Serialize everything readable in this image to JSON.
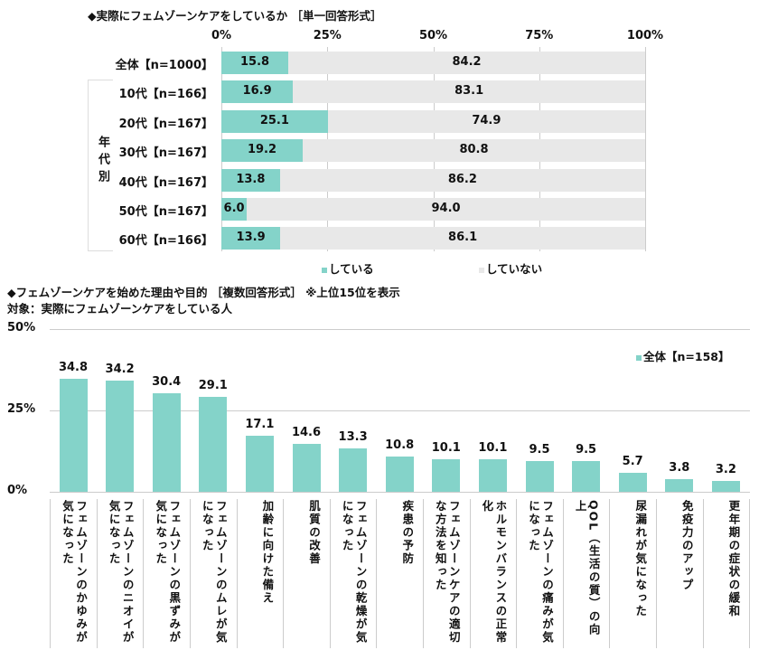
{
  "colors": {
    "done": "#84d3c9",
    "not_done": "#e8e8e8"
  },
  "chart_data": [
    {
      "type": "bar",
      "orientation": "horizontal",
      "stacked": true,
      "title": "◆実際にフェムゾーンケアをしているか ［単一回答形式］",
      "xticks": [
        "0%",
        "25%",
        "50%",
        "75%",
        "100%"
      ],
      "xlim": [
        0,
        100
      ],
      "group_label": "年代別",
      "categories": [
        "全体【n=1000】",
        "10代【n=166】",
        "20代【n=167】",
        "30代【n=167】",
        "40代【n=167】",
        "50代【n=167】",
        "60代【n=166】"
      ],
      "series": [
        {
          "name": "している",
          "values": [
            15.8,
            16.9,
            25.1,
            19.2,
            13.8,
            6.0,
            13.9
          ]
        },
        {
          "name": "していない",
          "values": [
            84.2,
            83.1,
            74.9,
            80.8,
            86.2,
            94.0,
            86.1
          ]
        }
      ],
      "legend": "bottom"
    },
    {
      "type": "bar",
      "title": "◆フェムゾーンケアを始めた理由や目的 ［複数回答形式］ ※上位15位を表示",
      "subtitle": "対象：実際にフェムゾーンケアをしている人",
      "yticks": [
        "50%",
        "25%",
        "0%"
      ],
      "ylim": [
        0,
        50
      ],
      "categories": [
        "フェムゾーンのかゆみが気になった",
        "フェムゾーンのニオイが気になった",
        "フェムゾーンの黒ずみが気になった",
        "フェムゾーンのムレが気になった",
        "加齢に向けた備え",
        "肌質の改善",
        "フェムゾーンの乾燥が気になった",
        "疾患の予防",
        "フェムゾーンケアの適切な方法を知った",
        "ホルモンバランスの正常化",
        "フェムゾーンの痛みが気になった",
        "QOL（生活の質）の向上",
        "尿漏れが気になった",
        "免疫力のアップ",
        "更年期の症状の緩和"
      ],
      "series": [
        {
          "name": "全体【n=158】",
          "values": [
            34.8,
            34.2,
            30.4,
            29.1,
            17.1,
            14.6,
            13.3,
            10.8,
            10.1,
            10.1,
            9.5,
            9.5,
            5.7,
            3.8,
            3.2
          ]
        }
      ],
      "legend": "top-right"
    }
  ]
}
